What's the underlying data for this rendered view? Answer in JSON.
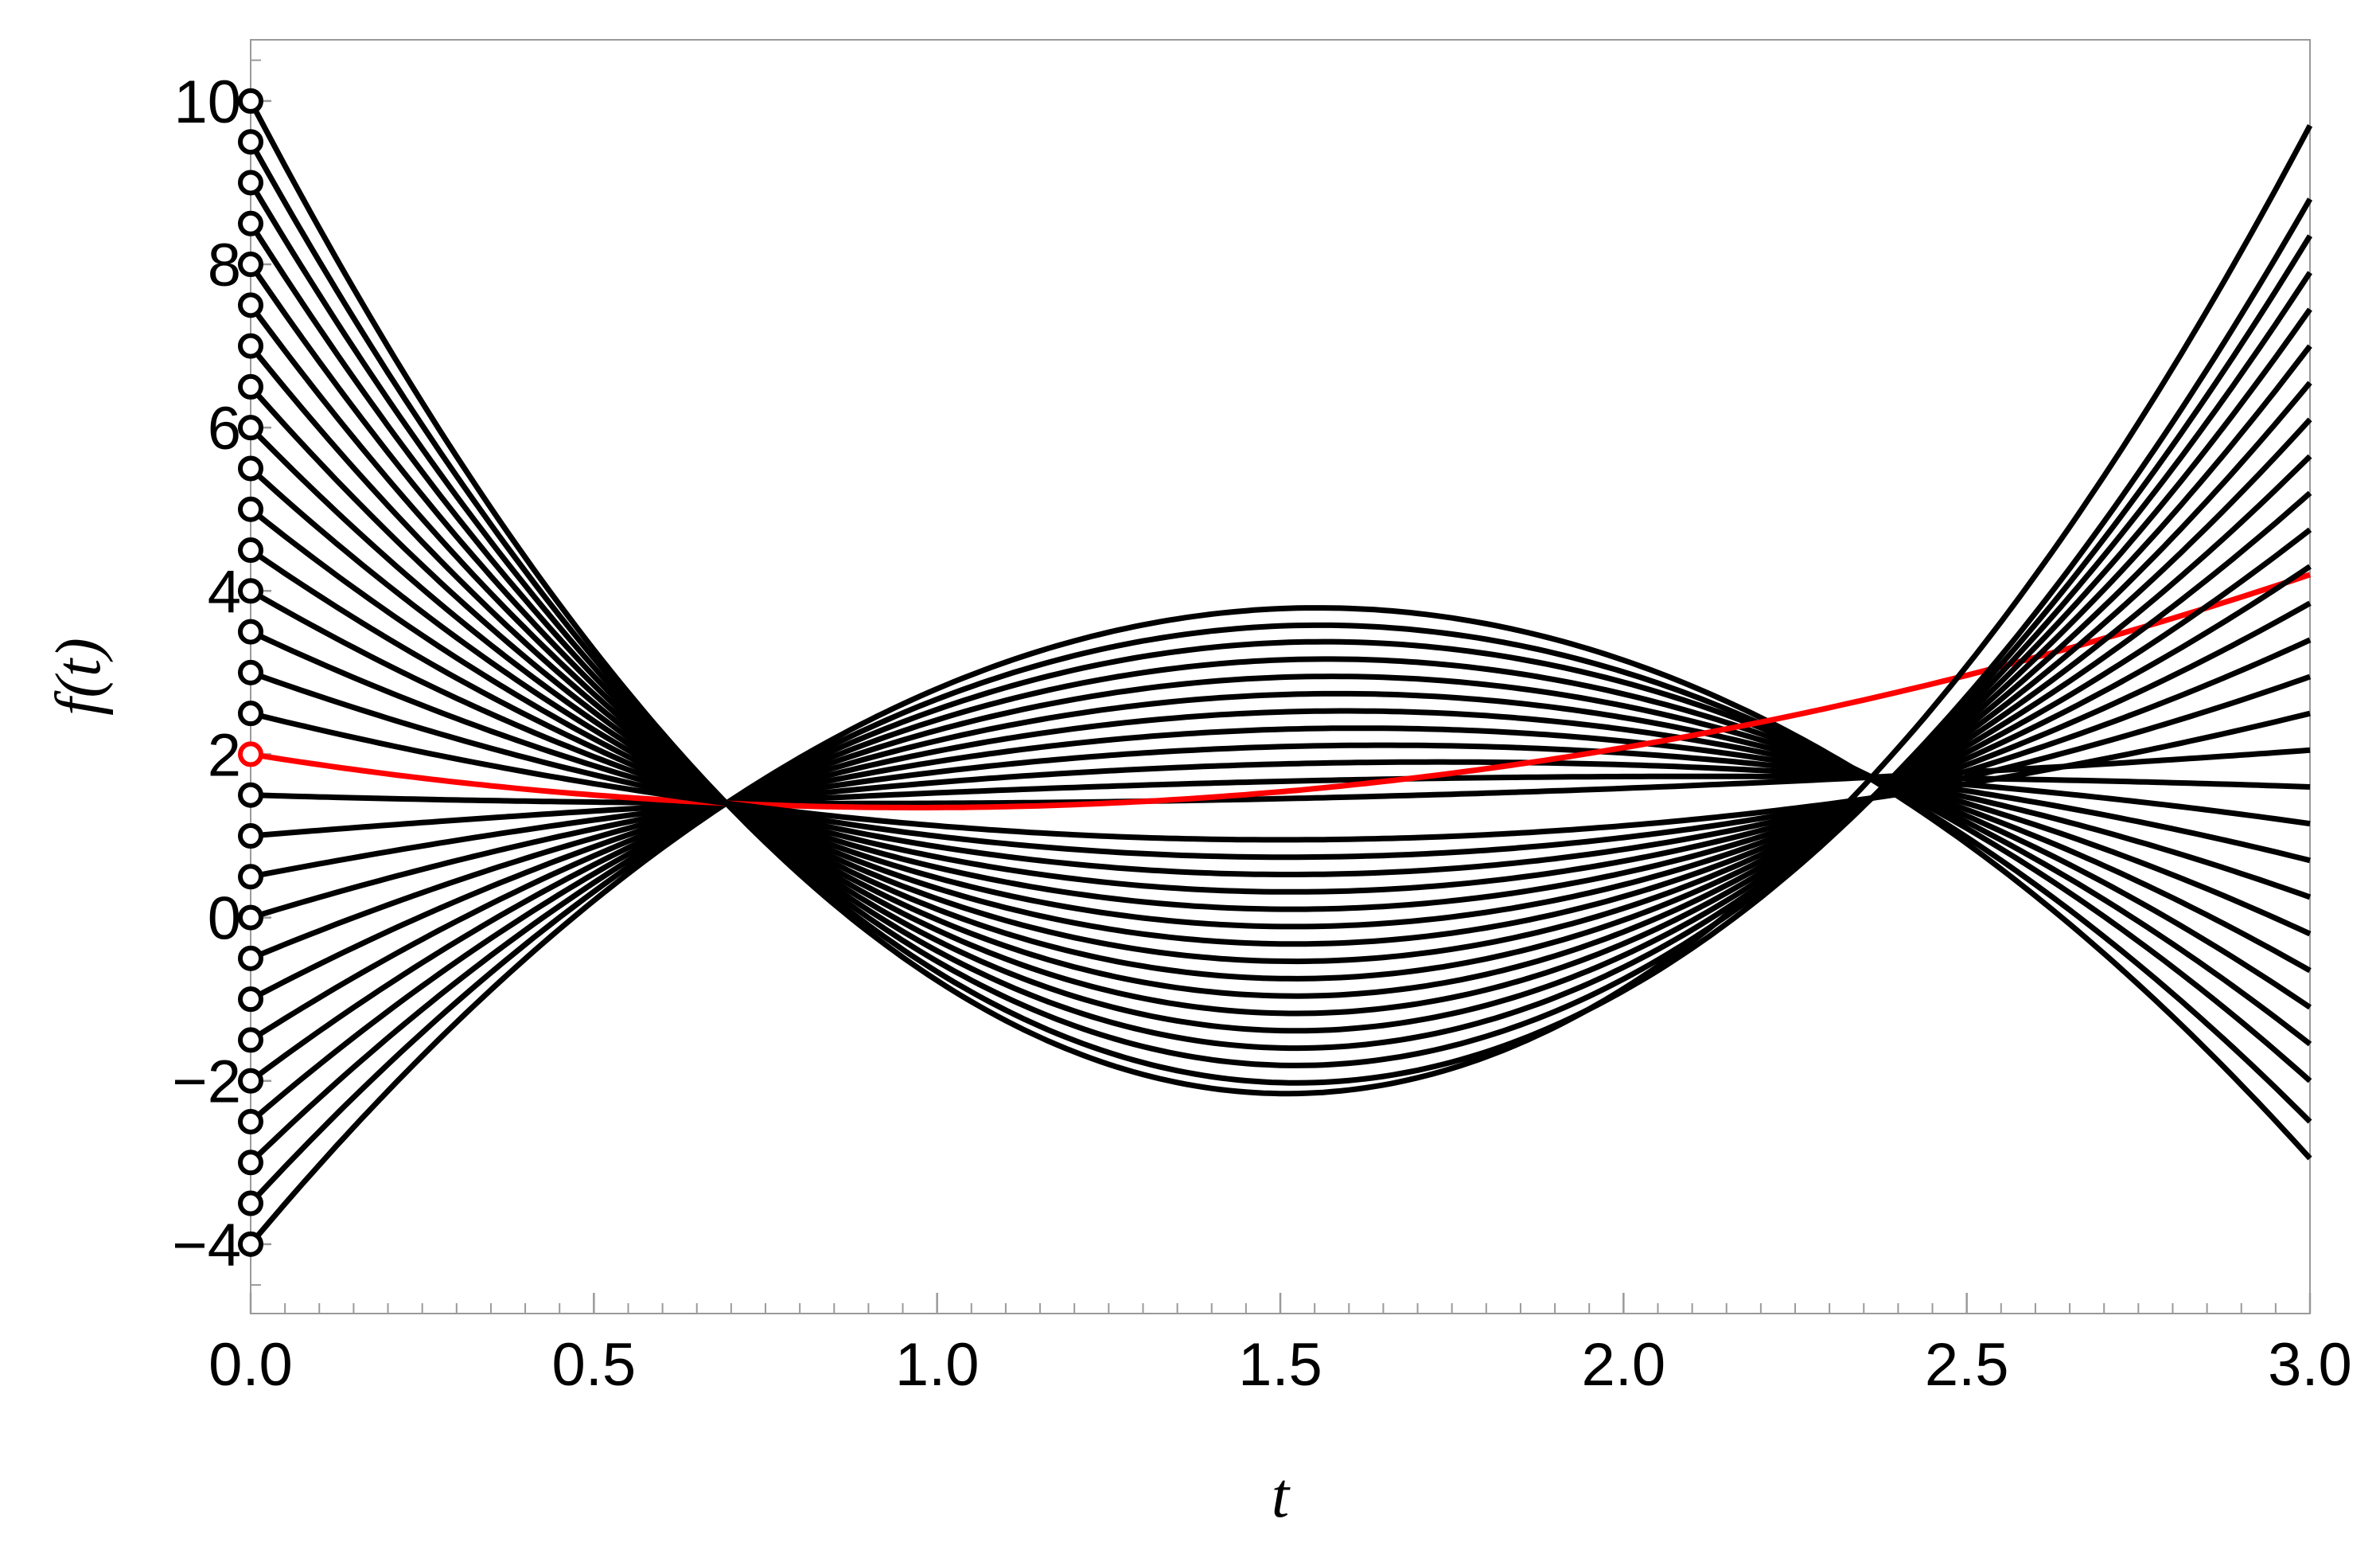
{
  "chart_data": {
    "type": "line",
    "title": "",
    "xlabel": "t",
    "ylabel": "f(t)",
    "xlim": [
      0,
      3
    ],
    "ylim": [
      -4.85,
      10.75
    ],
    "x_ticks": [
      0.0,
      0.5,
      1.0,
      1.5,
      2.0,
      2.5,
      3.0
    ],
    "x_tick_labels": [
      "0.0",
      "0.5",
      "1.0",
      "1.5",
      "2.0",
      "2.5",
      "3.0"
    ],
    "y_ticks": [
      -4,
      -2,
      0,
      2,
      4,
      6,
      8,
      10
    ],
    "y_tick_labels": [
      "−4",
      "−2",
      "0",
      "2",
      "4",
      "6",
      "8",
      "10"
    ],
    "grid": false,
    "legend": "none",
    "colors": {
      "default": "#000000",
      "highlight": "#ff0000"
    },
    "crossing_point": {
      "t": 0.693,
      "f": 1.4
    },
    "highlight_initial_value": 2,
    "series": [
      {
        "f0": -4.0,
        "f_at_3": -2.95
      },
      {
        "f0": -3.5,
        "f_at_3": -2.5
      },
      {
        "f0": -3.0,
        "f_at_3": -2.0
      },
      {
        "f0": -2.5,
        "f_at_3": -1.55
      },
      {
        "f0": -2.0,
        "f_at_3": -1.1
      },
      {
        "f0": -1.5,
        "f_at_3": -0.65
      },
      {
        "f0": -1.0,
        "f_at_3": -0.2
      },
      {
        "f0": -0.5,
        "f_at_3": 0.25
      },
      {
        "f0": 0.0,
        "f_at_3": 0.7
      },
      {
        "f0": 0.5,
        "f_at_3": 1.15
      },
      {
        "f0": 1.0,
        "f_at_3": 1.6
      },
      {
        "f0": 1.5,
        "f_at_3": 2.05
      },
      {
        "f0": 2.0,
        "f_at_3": 4.2
      },
      {
        "f0": 2.5,
        "f_at_3": 2.5
      },
      {
        "f0": 3.0,
        "f_at_3": 2.95
      },
      {
        "f0": 3.5,
        "f_at_3": 3.4
      },
      {
        "f0": 4.0,
        "f_at_3": 3.85
      },
      {
        "f0": 4.5,
        "f_at_3": 4.3
      },
      {
        "f0": 5.0,
        "f_at_3": 4.75
      },
      {
        "f0": 5.5,
        "f_at_3": 5.2
      },
      {
        "f0": 6.0,
        "f_at_3": 5.65
      },
      {
        "f0": 6.5,
        "f_at_3": 6.1
      },
      {
        "f0": 7.0,
        "f_at_3": 6.55
      },
      {
        "f0": 7.5,
        "f_at_3": 7.0
      },
      {
        "f0": 8.0,
        "f_at_3": 7.45
      },
      {
        "f0": 8.5,
        "f_at_3": 7.9
      },
      {
        "f0": 9.0,
        "f_at_3": 8.35
      },
      {
        "f0": 9.5,
        "f_at_3": 8.8
      },
      {
        "f0": 10.0,
        "f_at_3": 9.7
      }
    ]
  }
}
